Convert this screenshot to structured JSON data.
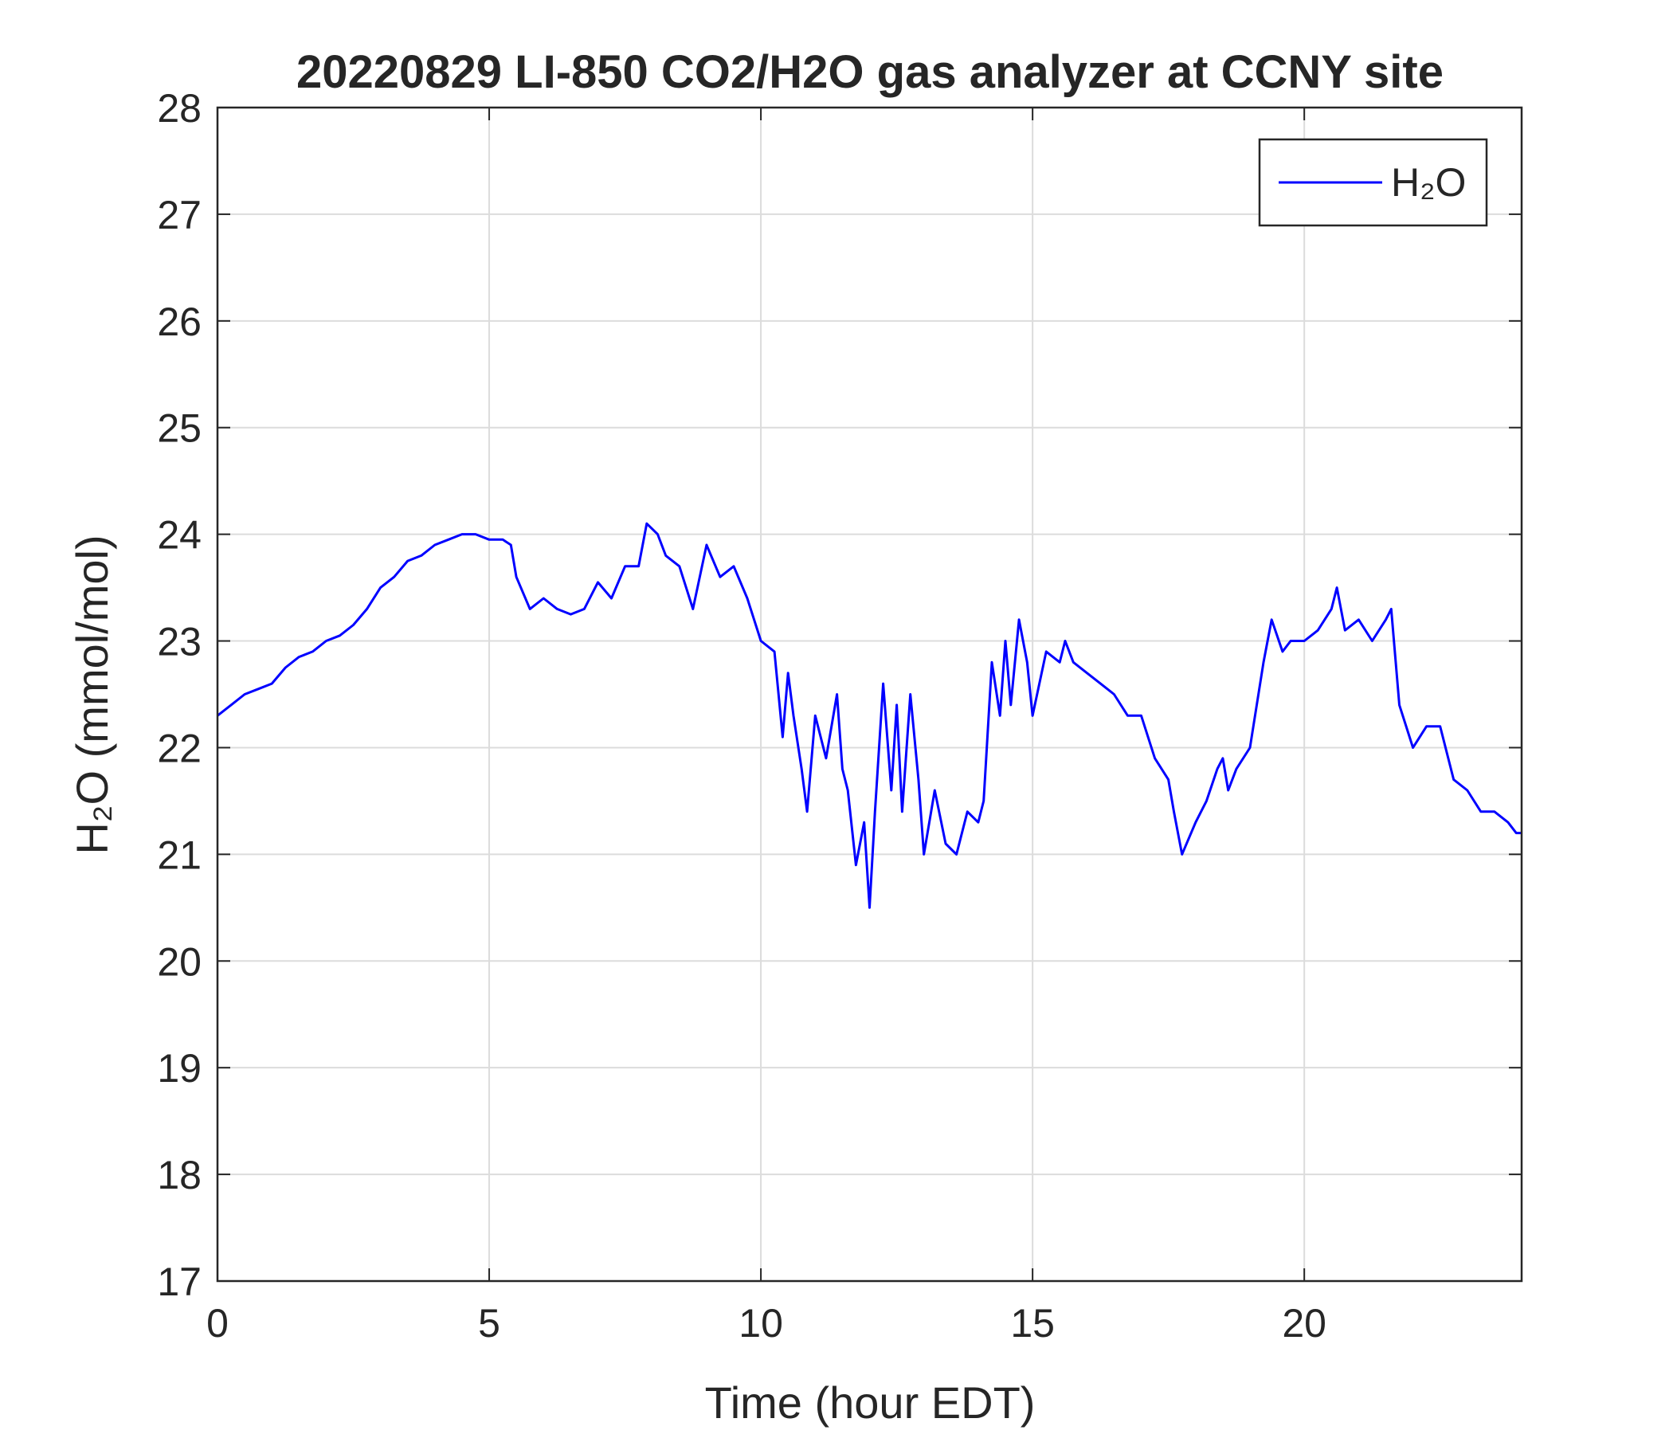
{
  "chart_data": {
    "type": "line",
    "title": "20220829 LI-850 CO2/H2O gas analyzer at CCNY site",
    "x_label": "Time (hour EDT)",
    "y_label": "H₂O (mmol/mol)",
    "xlim": [
      0,
      24
    ],
    "xticks": [
      0,
      5,
      10,
      15,
      20
    ],
    "ylim": [
      17,
      28
    ],
    "yticks": [
      17,
      18,
      19,
      20,
      21,
      22,
      23,
      24,
      25,
      26,
      27,
      28
    ],
    "grid": true,
    "legend": "upper right",
    "x": [
      0,
      0.25,
      0.5,
      0.75,
      1,
      1.25,
      1.5,
      1.75,
      2,
      2.25,
      2.5,
      2.75,
      3,
      3.25,
      3.5,
      3.75,
      4,
      4.25,
      4.5,
      4.75,
      5,
      5.25,
      5.4,
      5.5,
      5.75,
      6,
      6.25,
      6.5,
      6.75,
      7,
      7.25,
      7.5,
      7.75,
      7.9,
      8.1,
      8.25,
      8.5,
      8.75,
      9,
      9.25,
      9.5,
      9.75,
      10,
      10.25,
      10.4,
      10.5,
      10.6,
      10.75,
      10.85,
      11,
      11.2,
      11.4,
      11.5,
      11.6,
      11.75,
      11.9,
      12,
      12.1,
      12.25,
      12.4,
      12.5,
      12.6,
      12.75,
      12.9,
      13,
      13.2,
      13.4,
      13.6,
      13.8,
      14,
      14.1,
      14.25,
      14.4,
      14.5,
      14.6,
      14.75,
      14.9,
      15,
      15.25,
      15.5,
      15.6,
      15.75,
      16,
      16.25,
      16.5,
      16.75,
      17,
      17.25,
      17.5,
      17.6,
      17.75,
      18,
      18.2,
      18.4,
      18.5,
      18.6,
      18.75,
      19,
      19.25,
      19.4,
      19.6,
      19.75,
      20,
      20.25,
      20.5,
      20.6,
      20.75,
      21,
      21.25,
      21.5,
      21.6,
      21.75,
      22,
      22.25,
      22.5,
      22.75,
      23,
      23.25,
      23.5,
      23.75,
      23.9,
      24
    ],
    "series": [
      {
        "name": "H₂O",
        "color": "#0000ff",
        "values": [
          22.3,
          22.4,
          22.5,
          22.55,
          22.6,
          22.75,
          22.85,
          22.9,
          23.0,
          23.05,
          23.15,
          23.3,
          23.5,
          23.6,
          23.75,
          23.8,
          23.9,
          23.95,
          24.0,
          24.0,
          23.95,
          23.95,
          23.9,
          23.6,
          23.3,
          23.4,
          23.3,
          23.25,
          23.3,
          23.55,
          23.4,
          23.7,
          23.7,
          24.1,
          24.0,
          23.8,
          23.7,
          23.3,
          23.9,
          23.6,
          23.7,
          23.4,
          23.0,
          22.9,
          22.1,
          22.7,
          22.3,
          21.8,
          21.4,
          22.3,
          21.9,
          22.5,
          21.8,
          21.6,
          20.9,
          21.3,
          20.5,
          21.4,
          22.6,
          21.6,
          22.4,
          21.4,
          22.5,
          21.7,
          21.0,
          21.6,
          21.1,
          21.0,
          21.4,
          21.3,
          21.5,
          22.8,
          22.3,
          23.0,
          22.4,
          23.2,
          22.8,
          22.3,
          22.9,
          22.8,
          23.0,
          22.8,
          22.7,
          22.6,
          22.5,
          22.3,
          22.3,
          21.9,
          21.7,
          21.4,
          21.0,
          21.3,
          21.5,
          21.8,
          21.9,
          21.6,
          21.8,
          22.0,
          22.8,
          23.2,
          22.9,
          23.0,
          23.0,
          23.1,
          23.3,
          23.5,
          23.1,
          23.2,
          23.0,
          23.2,
          23.3,
          22.4,
          22.0,
          22.2,
          22.2,
          21.7,
          21.6,
          21.4,
          21.4,
          21.3,
          21.2,
          21.2
        ]
      }
    ]
  }
}
